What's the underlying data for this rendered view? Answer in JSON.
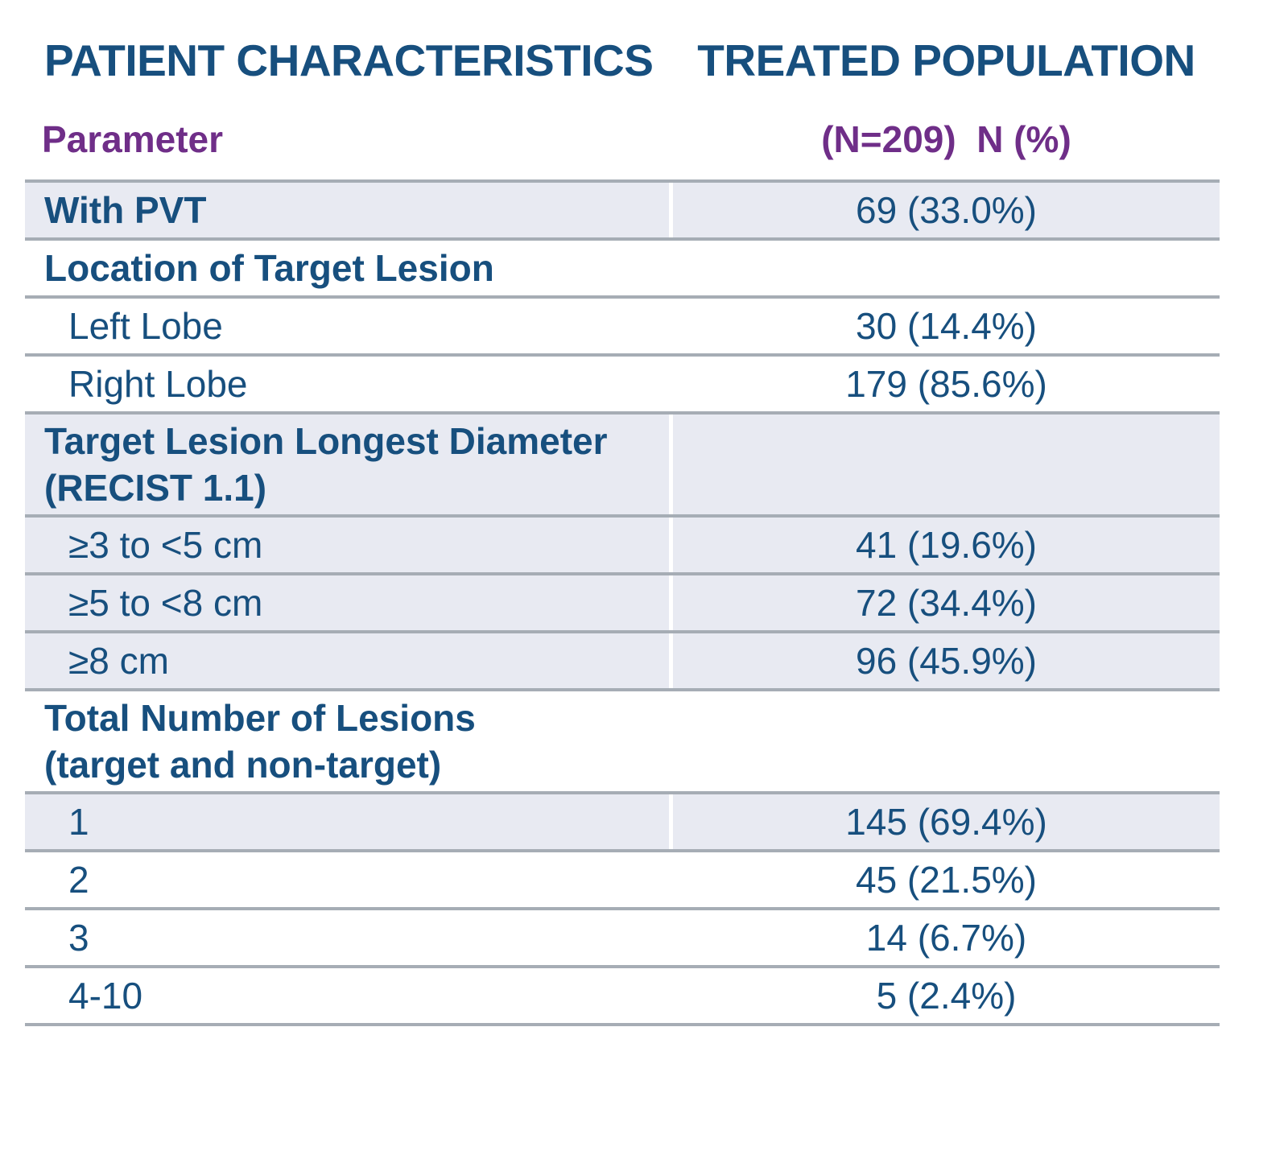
{
  "colors": {
    "navy_text": "#174F7E",
    "purple_header": "#6F2E88",
    "row_shade": "#E8EAF2",
    "rule_grey": "#A6ADB5",
    "column_divider": "#FFFFFF",
    "page_background": "#FFFFFF"
  },
  "header": {
    "left_title": "PATIENT CHARACTERISTICS",
    "right_title": "TREATED POPULATION",
    "parameter_label": "Parameter",
    "population_label": "(N=209)  N (%)"
  },
  "table": {
    "rows": [
      {
        "label": "With PVT",
        "value": "69 (33.0%)",
        "shaded": true,
        "bold": true,
        "indent": false
      },
      {
        "label": "Location of Target Lesion",
        "value": "",
        "shaded": false,
        "bold": true,
        "indent": false
      },
      {
        "label": "Left Lobe",
        "value": "30 (14.4%)",
        "shaded": false,
        "bold": false,
        "indent": true
      },
      {
        "label": "Right Lobe",
        "value": "179 (85.6%)",
        "shaded": false,
        "bold": false,
        "indent": true
      },
      {
        "label": "Target Lesion Longest Diameter\n(RECIST 1.1)",
        "value": "",
        "shaded": true,
        "bold": true,
        "indent": false
      },
      {
        "label": "≥3 to <5 cm",
        "value": "41 (19.6%)",
        "shaded": true,
        "bold": false,
        "indent": true
      },
      {
        "label": "≥5 to <8 cm",
        "value": "72 (34.4%)",
        "shaded": true,
        "bold": false,
        "indent": true
      },
      {
        "label": "≥8 cm",
        "value": "96 (45.9%)",
        "shaded": true,
        "bold": false,
        "indent": true
      },
      {
        "label": "Total Number of Lesions\n(target and non-target)",
        "value": "",
        "shaded": false,
        "bold": true,
        "indent": false
      },
      {
        "label": "1",
        "value": "145 (69.4%)",
        "shaded": true,
        "bold": false,
        "indent": true
      },
      {
        "label": "2",
        "value": "45 (21.5%)",
        "shaded": false,
        "bold": false,
        "indent": true
      },
      {
        "label": "3",
        "value": "14 (6.7%)",
        "shaded": false,
        "bold": false,
        "indent": true
      },
      {
        "label": "4-10",
        "value": "5 (2.4%)",
        "shaded": false,
        "bold": false,
        "indent": true
      }
    ]
  }
}
